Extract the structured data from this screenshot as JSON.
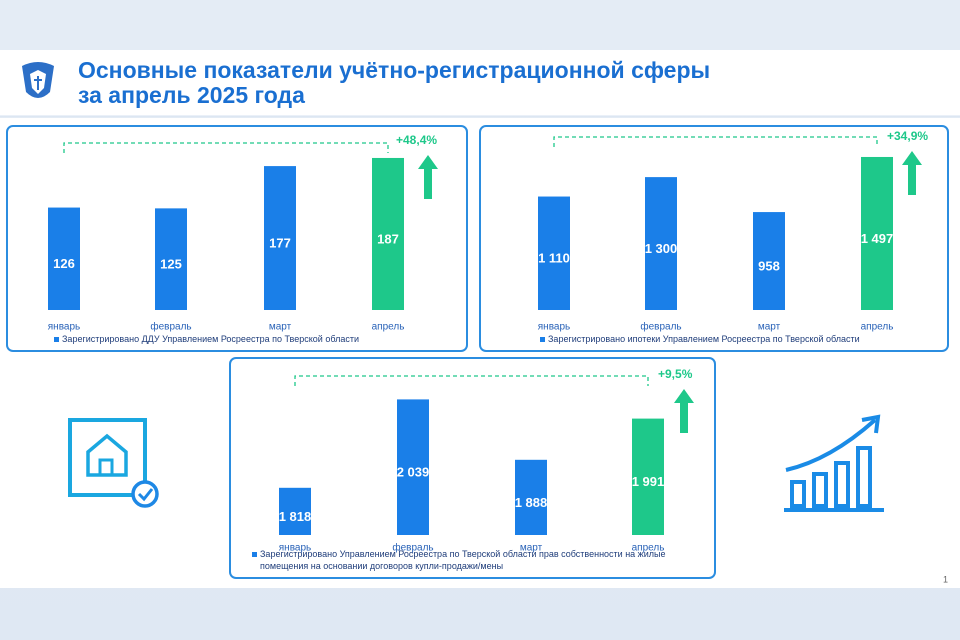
{
  "title_lines": [
    "Основные показатели учётно-регистрационной сферы",
    "за апрель 2025 года"
  ],
  "page_number": "1",
  "chart_data": [
    {
      "type": "bar",
      "categories": [
        "январь",
        "февраль",
        "март",
        "апрель"
      ],
      "series": [
        {
          "name": "Зарегистрировано ДДУ Управлением Росреестра по Тверской области",
          "values": [
            126,
            125,
            177,
            187
          ],
          "colors": [
            "#1a7fe8",
            "#1a7fe8",
            "#1a7fe8",
            "#1ec88a"
          ]
        }
      ],
      "ylim": [
        0,
        230
      ],
      "annotation": "+48,4%"
    },
    {
      "type": "bar",
      "categories": [
        "январь",
        "февраль",
        "март",
        "апрель"
      ],
      "series": [
        {
          "name": "Зарегистрировано ипотеки Управлением Росреестра по Тверской области",
          "values": [
            1110,
            1300,
            958,
            1497
          ],
          "value_labels": [
            "1 110",
            "1 300",
            "958",
            "1 497"
          ],
          "colors": [
            "#1a7fe8",
            "#1a7fe8",
            "#1a7fe8",
            "#1ec88a"
          ]
        }
      ],
      "ylim": [
        0,
        1800
      ],
      "annotation": "+34,9%"
    },
    {
      "type": "bar",
      "categories": [
        "январь",
        "февраль",
        "март",
        "апрель"
      ],
      "series": [
        {
          "name": "Зарегистрировано Управлением Росреестра по Тверской области прав собственности на жилые помещения на основании договоров купли-продажи/мены",
          "values": [
            1818,
            2039,
            1888,
            1991
          ],
          "value_labels": [
            "1 818",
            "2 039",
            "1 888",
            "1 991"
          ],
          "colors": [
            "#1a7fe8",
            "#1a7fe8",
            "#1a7fe8",
            "#1ec88a"
          ]
        }
      ],
      "ylim": [
        1700,
        2100
      ],
      "annotation": "+9,5%"
    }
  ]
}
